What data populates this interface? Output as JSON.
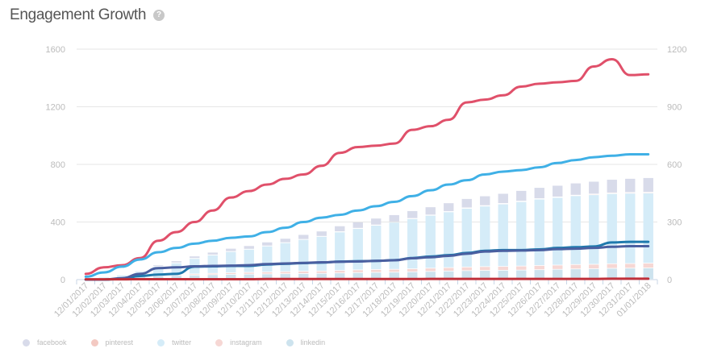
{
  "header": {
    "title": "Engagement Growth",
    "help_icon": "question-circle-icon"
  },
  "chart_data": {
    "type": "bar+line",
    "title": "Engagement Growth",
    "y_left": {
      "ticks": [
        0,
        400,
        800,
        1200,
        1600
      ],
      "range": [
        0,
        1600
      ]
    },
    "y_right": {
      "ticks": [
        0,
        300,
        600,
        900,
        1200
      ],
      "range": [
        0,
        1200
      ]
    },
    "grid": true,
    "legend_placement": "bottom-left",
    "categories": [
      "12/01/2017",
      "12/02/2017",
      "12/03/2017",
      "12/04/2017",
      "12/05/2017",
      "12/06/2017",
      "12/07/2017",
      "12/08/2017",
      "12/09/2017",
      "12/10/2017",
      "12/11/2017",
      "12/12/2017",
      "12/13/2017",
      "12/14/2017",
      "12/15/2017",
      "12/16/2017",
      "12/17/2017",
      "12/18/2017",
      "12/19/2017",
      "12/20/2017",
      "12/21/2017",
      "12/22/2017",
      "12/23/2017",
      "12/24/2017",
      "12/25/2017",
      "12/26/2017",
      "12/27/2017",
      "12/28/2017",
      "12/29/2017",
      "12/30/2017",
      "12/31/2017",
      "01/01/2018"
    ],
    "bar_series_axis": "right",
    "bar_series": [
      {
        "name": "linkedin",
        "color": "#cde3ee",
        "values": [
          2,
          4,
          8,
          12,
          18,
          20,
          22,
          24,
          26,
          27,
          28,
          29,
          30,
          31,
          33,
          35,
          36,
          37,
          39,
          41,
          43,
          45,
          46,
          47,
          48,
          50,
          52,
          54,
          55,
          57,
          58,
          59
        ]
      },
      {
        "name": "instagram",
        "color": "#f6d7d4",
        "values": [
          0,
          1,
          2,
          3,
          4,
          5,
          6,
          7,
          8,
          9,
          10,
          11,
          12,
          12,
          13,
          14,
          15,
          15,
          16,
          17,
          18,
          19,
          20,
          20,
          21,
          22,
          22,
          23,
          23,
          24,
          24,
          25
        ]
      },
      {
        "name": "twitter",
        "color": "#d5ecf8",
        "values": [
          3,
          6,
          12,
          25,
          45,
          60,
          80,
          95,
          110,
          120,
          135,
          150,
          165,
          180,
          200,
          215,
          230,
          245,
          260,
          275,
          290,
          305,
          315,
          325,
          335,
          345,
          352,
          358,
          362,
          365,
          366,
          365
        ]
      },
      {
        "name": "pinterest",
        "color": "#f3c9c2",
        "values": [
          0,
          0,
          0,
          0,
          0,
          1,
          1,
          1,
          1,
          1,
          1,
          1,
          1,
          1,
          2,
          2,
          2,
          2,
          2,
          2,
          2,
          3,
          3,
          3,
          3,
          3,
          3,
          3,
          4,
          4,
          4,
          4
        ]
      },
      {
        "name": "facebook",
        "color": "#d8dbea",
        "values": [
          0,
          1,
          3,
          5,
          8,
          10,
          12,
          14,
          16,
          18,
          20,
          22,
          25,
          27,
          30,
          32,
          35,
          37,
          40,
          42,
          45,
          48,
          50,
          52,
          55,
          58,
          60,
          63,
          66,
          70,
          73,
          76
        ]
      }
    ],
    "line_series_axis": "left",
    "line_series": [
      {
        "color": "#e0506a",
        "values": [
          40,
          85,
          100,
          150,
          270,
          330,
          400,
          480,
          570,
          615,
          660,
          700,
          730,
          790,
          880,
          920,
          930,
          945,
          1040,
          1065,
          1110,
          1230,
          1250,
          1280,
          1340,
          1360,
          1370,
          1380,
          1480,
          1530,
          1420,
          1425
        ]
      },
      {
        "color": "#3fb0e6",
        "values": [
          20,
          50,
          90,
          140,
          190,
          220,
          250,
          270,
          290,
          300,
          330,
          360,
          400,
          430,
          450,
          480,
          510,
          540,
          580,
          620,
          660,
          690,
          730,
          750,
          760,
          780,
          810,
          830,
          850,
          860,
          870,
          870
        ]
      },
      {
        "color": "#1f7aad",
        "values": [
          0,
          0,
          5,
          25,
          35,
          40,
          90,
          92,
          95,
          95,
          105,
          110,
          115,
          118,
          125,
          128,
          130,
          135,
          150,
          160,
          170,
          185,
          200,
          205,
          205,
          210,
          220,
          225,
          230,
          258,
          262,
          262
        ]
      },
      {
        "color": "#4a5fa0",
        "values": [
          0,
          0,
          10,
          40,
          80,
          85,
          92,
          95,
          97,
          100,
          108,
          112,
          116,
          120,
          124,
          126,
          130,
          134,
          148,
          155,
          165,
          180,
          195,
          200,
          202,
          205,
          212,
          215,
          220,
          228,
          232,
          232
        ]
      },
      {
        "color": "#c0303a",
        "values": [
          2,
          2,
          2,
          3,
          3,
          3,
          3,
          3,
          3,
          3,
          4,
          4,
          4,
          4,
          4,
          4,
          4,
          4,
          4,
          5,
          5,
          5,
          5,
          5,
          5,
          5,
          5,
          5,
          5,
          6,
          6,
          6
        ]
      }
    ]
  },
  "legend": [
    {
      "label": "facebook",
      "color": "#d8dbea"
    },
    {
      "label": "pinterest",
      "color": "#f3c9c2"
    },
    {
      "label": "twitter",
      "color": "#d5ecf8"
    },
    {
      "label": "instagram",
      "color": "#f6d7d4"
    },
    {
      "label": "linkedin",
      "color": "#cde3ee"
    }
  ]
}
